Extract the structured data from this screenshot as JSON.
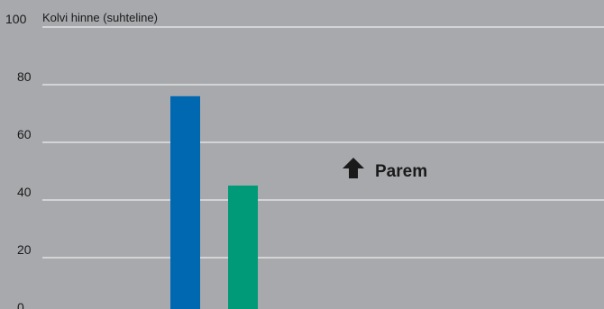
{
  "chart_data": {
    "type": "bar",
    "categories": [
      "",
      ""
    ],
    "values": [
      76,
      45
    ],
    "ylim": [
      0,
      100
    ],
    "yticks": [
      0,
      20,
      40,
      60,
      80,
      100
    ],
    "ylabel": "Kolvi hinne (suhteline)",
    "grid": true,
    "bar_colors": [
      "#0067b1",
      "#009a78"
    ],
    "annotation": {
      "text": "Parem",
      "icon": "arrow-up-icon"
    }
  },
  "colors": {
    "background": "#a7a9ac",
    "gridline": "#ffffff"
  }
}
